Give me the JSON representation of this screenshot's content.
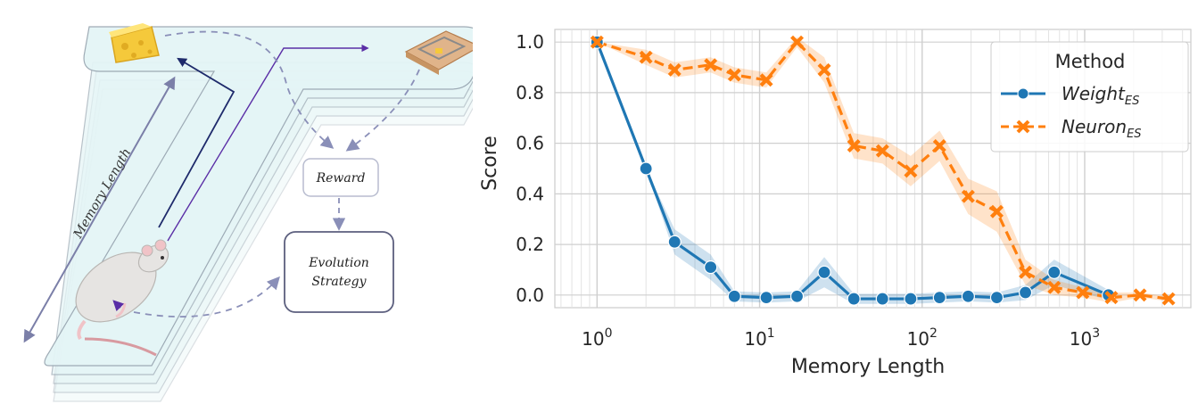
{
  "diagram": {
    "memory_length_label": "Memory Length",
    "reward_label": "Reward",
    "evolution_label_line1": "Evolution",
    "evolution_label_line2": "Strategy"
  },
  "chart_data": {
    "type": "line",
    "xscale": "log",
    "xlabel": "Memory Length",
    "ylabel": "Score",
    "xlim": [
      0.55,
      4500
    ],
    "ylim": [
      -0.05,
      1.05
    ],
    "x_ticks": [
      {
        "value": 1,
        "label_base": "10",
        "label_exp": "0"
      },
      {
        "value": 10,
        "label_base": "10",
        "label_exp": "1"
      },
      {
        "value": 100,
        "label_base": "10",
        "label_exp": "2"
      },
      {
        "value": 1000,
        "label_base": "10",
        "label_exp": "3"
      }
    ],
    "y_ticks": [
      0.0,
      0.2,
      0.4,
      0.6,
      0.8,
      1.0
    ],
    "y_tick_labels": [
      "0.0",
      "0.2",
      "0.4",
      "0.6",
      "0.8",
      "1.0"
    ],
    "grid": true,
    "legend": {
      "title": "Method",
      "placement": "top-right",
      "entries": [
        {
          "base": "Weight",
          "sub": "ES"
        },
        {
          "base": "Neuron",
          "sub": "ES"
        }
      ]
    },
    "series": [
      {
        "base": "Weight",
        "sub": "ES",
        "color": "#1f77b4",
        "marker": "circle",
        "linestyle": "solid",
        "x": [
          1,
          2,
          3,
          5,
          7,
          11,
          17,
          25,
          38,
          57,
          85,
          128,
          192,
          288,
          432,
          649,
          1400
        ],
        "y": [
          1.0,
          0.5,
          0.21,
          0.11,
          -0.005,
          -0.01,
          -0.005,
          0.09,
          -0.015,
          -0.015,
          -0.015,
          -0.01,
          -0.005,
          -0.01,
          0.01,
          0.09,
          0.0
        ],
        "band": [
          0,
          0,
          0.05,
          0.05,
          0.02,
          0.02,
          0.02,
          0.06,
          0.02,
          0.02,
          0.02,
          0.02,
          0.02,
          0.02,
          0.03,
          0.05,
          0.02
        ]
      },
      {
        "base": "Neuron",
        "sub": "ES",
        "color": "#ff7f0e",
        "marker": "x",
        "linestyle": "dashed",
        "x": [
          1,
          2,
          3,
          5,
          7,
          11,
          17,
          25,
          38,
          57,
          85,
          128,
          192,
          288,
          432,
          649,
          973,
          1460,
          2190,
          3284
        ],
        "y": [
          1.0,
          0.94,
          0.89,
          0.91,
          0.87,
          0.85,
          1.0,
          0.89,
          0.59,
          0.57,
          0.49,
          0.59,
          0.39,
          0.33,
          0.09,
          0.03,
          0.01,
          -0.01,
          0.0,
          -0.015
        ],
        "band": [
          0,
          0.03,
          0.03,
          0.03,
          0.03,
          0.03,
          0.02,
          0.05,
          0.05,
          0.05,
          0.06,
          0.06,
          0.07,
          0.08,
          0.05,
          0.03,
          0.02,
          0.02,
          0.01,
          0.01
        ]
      }
    ]
  }
}
